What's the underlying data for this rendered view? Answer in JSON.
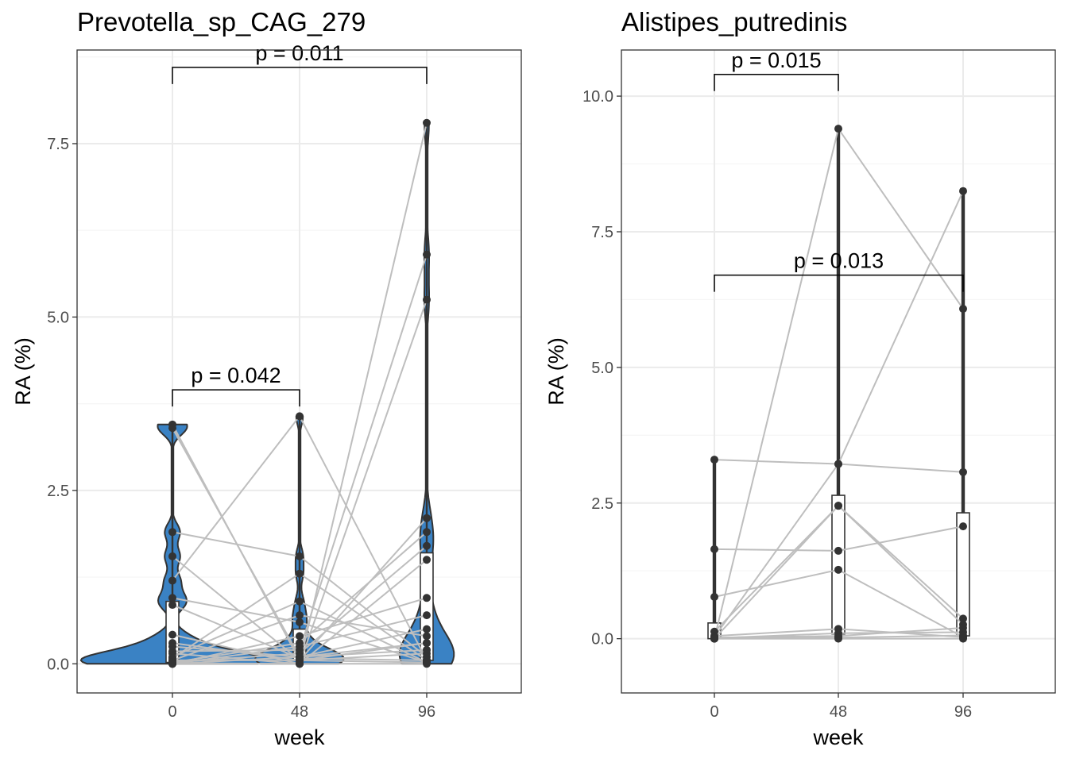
{
  "chart_data": [
    {
      "type": "violin",
      "title": "Prevotella_sp_CAG_279",
      "xlabel": "week",
      "ylabel": "RA (%)",
      "categories": [
        "0",
        "48",
        "96"
      ],
      "ylim": [
        -0.42,
        8.85
      ],
      "y_ticks": [
        0.0,
        2.5,
        5.0,
        7.5
      ],
      "y_tick_labels": [
        "0.0",
        "2.5",
        "5.0",
        "7.5"
      ],
      "grid": true,
      "fill_color": "#3a82c4",
      "line_color": "#bebebe",
      "pairs": [
        [
          3.45,
          0.05,
          0.15
        ],
        [
          3.4,
          0.1,
          0.2
        ],
        [
          1.9,
          1.55,
          0.1
        ],
        [
          1.55,
          0.05,
          0.3
        ],
        [
          1.2,
          3.57,
          0.05
        ],
        [
          0.95,
          0.6,
          0.02
        ],
        [
          0.85,
          0.08,
          0.05
        ],
        [
          0.42,
          0.0,
          7.8
        ],
        [
          0.3,
          0.05,
          0.02
        ],
        [
          0.25,
          0.1,
          0.3
        ],
        [
          0.18,
          0.2,
          5.9
        ],
        [
          0.15,
          0.0,
          5.25
        ],
        [
          0.1,
          0.9,
          0.02
        ],
        [
          0.08,
          1.3,
          0.05
        ],
        [
          0.05,
          0.7,
          0.4
        ],
        [
          0.05,
          0.05,
          2.1
        ],
        [
          0.02,
          0.3,
          1.9
        ],
        [
          0.02,
          0.15,
          1.7
        ],
        [
          0.01,
          0.0,
          1.5
        ],
        [
          0.0,
          0.4,
          0.95
        ],
        [
          0.0,
          0.25,
          0.7
        ],
        [
          0.0,
          0.1,
          0.5
        ],
        [
          0.0,
          0.0,
          0.0
        ]
      ],
      "comparisons": [
        {
          "groups": [
            "0",
            "96"
          ],
          "label": "p = 0.011",
          "y": 8.6
        },
        {
          "groups": [
            "0",
            "48"
          ],
          "label": "p = 0.042",
          "y": 3.95
        }
      ]
    },
    {
      "type": "violin",
      "title": "Alistipes_putredinis",
      "xlabel": "week",
      "ylabel": "RA (%)",
      "categories": [
        "0",
        "48",
        "96"
      ],
      "ylim": [
        -1.0,
        10.85
      ],
      "y_ticks": [
        0.0,
        2.5,
        5.0,
        7.5,
        10.0
      ],
      "y_tick_labels": [
        "0.0",
        "2.5",
        "5.0",
        "7.5",
        "10.0"
      ],
      "grid": true,
      "fill_color": "#3a82c4",
      "line_color": "#bebebe",
      "pairs": [
        [
          3.3,
          3.22,
          3.07
        ],
        [
          1.65,
          1.62,
          2.07
        ],
        [
          0.77,
          1.27,
          0.03
        ],
        [
          0.13,
          2.45,
          0.37
        ],
        [
          0.05,
          0.18,
          0.03
        ],
        [
          0.0,
          9.4,
          6.08
        ],
        [
          0.03,
          3.22,
          8.25
        ],
        [
          0.0,
          2.45,
          0.26
        ],
        [
          0.02,
          0.05,
          0.2
        ],
        [
          0.01,
          0.1,
          0.12
        ],
        [
          0.0,
          0.02,
          0.06
        ],
        [
          0.0,
          0.0,
          0.0
        ]
      ],
      "comparisons": [
        {
          "groups": [
            "0",
            "48"
          ],
          "label": "p = 0.015",
          "y": 10.4
        },
        {
          "groups": [
            "0",
            "96"
          ],
          "label": "p = 0.013",
          "y": 6.7
        }
      ]
    }
  ]
}
